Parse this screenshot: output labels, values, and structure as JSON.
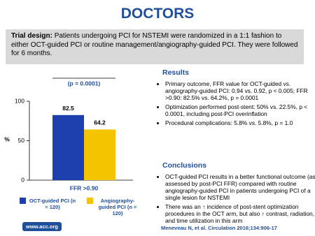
{
  "header": {
    "title": "DOCTORS"
  },
  "trial_design": {
    "label": "Trial design:",
    "text": "Patients undergoing PCI for NSTEMI were randomized in a 1:1 fashion to either OCT-guided PCI or routine management/angiography-guided PCI. They were followed for 6 months."
  },
  "chart_data": {
    "type": "bar",
    "annotation": "(p = 0.0001)",
    "y_label": "%",
    "categories": [
      "FFR >0.90"
    ],
    "series": [
      {
        "name": "OCT-guided PCI (n = 120)",
        "color": "#1d3fae",
        "values": [
          82.5
        ]
      },
      {
        "name": "Angiography-guided PCI (n = 120)",
        "color": "#f5c400",
        "values": [
          64.2
        ]
      }
    ],
    "ylim": [
      0,
      100
    ],
    "yticks": [
      0,
      50,
      100
    ]
  },
  "results": {
    "title": "Results",
    "items": [
      "Primary outcome, FFR value for OCT-guided vs. angiography-guided PCI: 0.94 vs. 0.92, p < 0.005; FFR >0.90: 82.5% vs. 64.2%, p = 0.0001",
      "Optimization performed post-stent: 50% vs. 22.5%, p < 0.0001, including post-PCI overinflation",
      "Procedural complications: 5.8% vs. 5.8%, p = 1.0"
    ]
  },
  "conclusions": {
    "title": "Conclusions",
    "items": [
      "OCT-guided PCI results in a better functional outcome (as assessed by post-PCI FFR) compared with routine angiography-guided PCI in patients undergoing PCI of a single lesion for NSTEMI",
      "There was an ↑ incidence of post-stent optimization procedures in the OCT arm, but also ↑ contrast, radiation, and time utilization in this arm"
    ]
  },
  "footer": {
    "url": "www.acc.org",
    "citation": "Meneveau N, et al. Circulation 2016;134:906-17"
  }
}
